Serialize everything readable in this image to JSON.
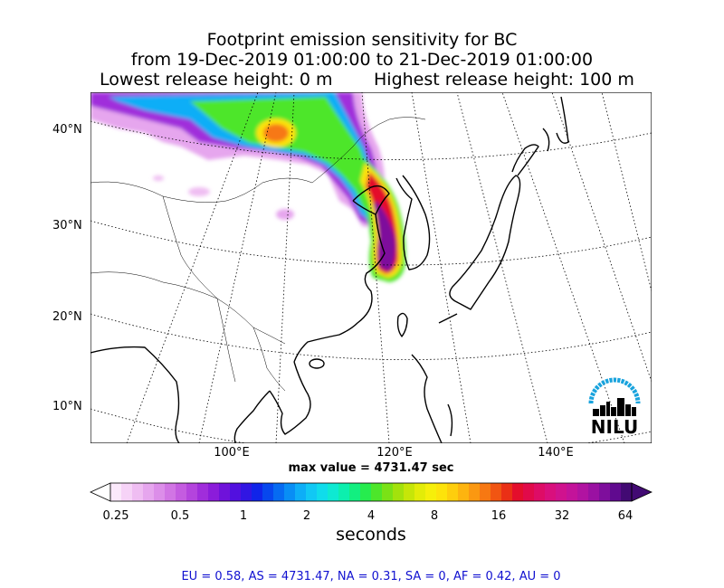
{
  "title": {
    "line1": "Footprint emission sensitivity for BC",
    "line2": "from 19-Dec-2019 01:00:00 to 21-Dec-2019 01:00:00",
    "lowest": "Lowest release height: 0 m",
    "highest": "Highest release height: 100 m"
  },
  "axes": {
    "lat_labels": [
      "40°N",
      "30°N",
      "20°N",
      "10°N"
    ],
    "lon_labels": [
      "100°E",
      "120°E",
      "140°E"
    ]
  },
  "max_value": "max value = 4731.47 sec",
  "colorbar": {
    "ticks": [
      "0.25",
      "0.5",
      "1",
      "2",
      "4",
      "8",
      "16",
      "32",
      "64"
    ],
    "colors": [
      "#fbe9fb",
      "#f6d3f7",
      "#efbdf2",
      "#e6a6ee",
      "#dc8ee9",
      "#d175e4",
      "#c45ce0",
      "#b444dd",
      "#a02ddb",
      "#8b1cda",
      "#6f12da",
      "#5210df",
      "#3116e3",
      "#1024e9",
      "#0747ee",
      "#066bf2",
      "#088ef5",
      "#0daef7",
      "#11c8f4",
      "#10dceb",
      "#0ee9d2",
      "#0cefae",
      "#12ef80",
      "#26ec4e",
      "#4de62a",
      "#7ae216",
      "#a3e20c",
      "#c6e608",
      "#e3ec08",
      "#f6ef0a",
      "#fde30b",
      "#fece0d",
      "#fdb40f",
      "#fb9811",
      "#f77812",
      "#f15512",
      "#ea3016",
      "#e40e2c",
      "#e10a4a",
      "#de0c66",
      "#d90f7d",
      "#d0128e",
      "#c3139a",
      "#b113a1",
      "#9a11a2",
      "#7e0e9c",
      "#600a8f",
      "#420a73"
    ],
    "units": "seconds"
  },
  "stats": "EU = 0.58,  AS = 4731.47,  NA = 0.31,  SA = 0,  AF = 0.42,  AU = 0",
  "logo": {
    "text": "NILU",
    "arc_color": "#19a3dd"
  }
}
